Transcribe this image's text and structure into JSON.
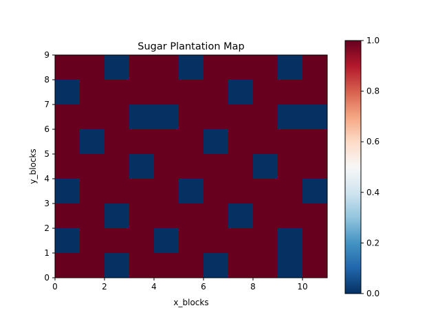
{
  "chart_data": {
    "type": "heatmap",
    "title": "Sugar Plantation Map",
    "xlabel": "x_blocks",
    "ylabel": "y_blocks",
    "xlim": [
      0,
      11
    ],
    "ylim": [
      0,
      9
    ],
    "x_ticks": [
      0,
      2,
      4,
      6,
      8,
      10
    ],
    "y_ticks": [
      0,
      1,
      2,
      3,
      4,
      5,
      6,
      7,
      8,
      9
    ],
    "colormap": "RdBu_r",
    "color_low": "#053061",
    "color_high": "#67001f",
    "colorbar": {
      "min": 0.0,
      "max": 1.0,
      "ticks": [
        "0.0",
        "0.2",
        "0.4",
        "0.6",
        "0.8",
        "1.0"
      ]
    },
    "rows_top_to_bottom": [
      [
        1,
        1,
        0,
        1,
        1,
        0,
        1,
        1,
        1,
        0,
        1
      ],
      [
        0,
        1,
        1,
        1,
        1,
        1,
        1,
        0,
        1,
        1,
        1
      ],
      [
        1,
        1,
        1,
        0,
        0,
        1,
        1,
        1,
        1,
        0,
        0
      ],
      [
        1,
        0,
        1,
        1,
        1,
        1,
        0,
        1,
        1,
        1,
        1
      ],
      [
        1,
        1,
        1,
        0,
        1,
        1,
        1,
        1,
        0,
        1,
        1
      ],
      [
        0,
        1,
        1,
        1,
        1,
        0,
        1,
        1,
        1,
        1,
        0
      ],
      [
        1,
        1,
        0,
        1,
        1,
        1,
        1,
        0,
        1,
        1,
        1
      ],
      [
        0,
        1,
        1,
        1,
        0,
        1,
        1,
        1,
        1,
        0,
        1
      ],
      [
        1,
        1,
        0,
        1,
        1,
        1,
        0,
        1,
        1,
        0,
        1
      ]
    ]
  }
}
